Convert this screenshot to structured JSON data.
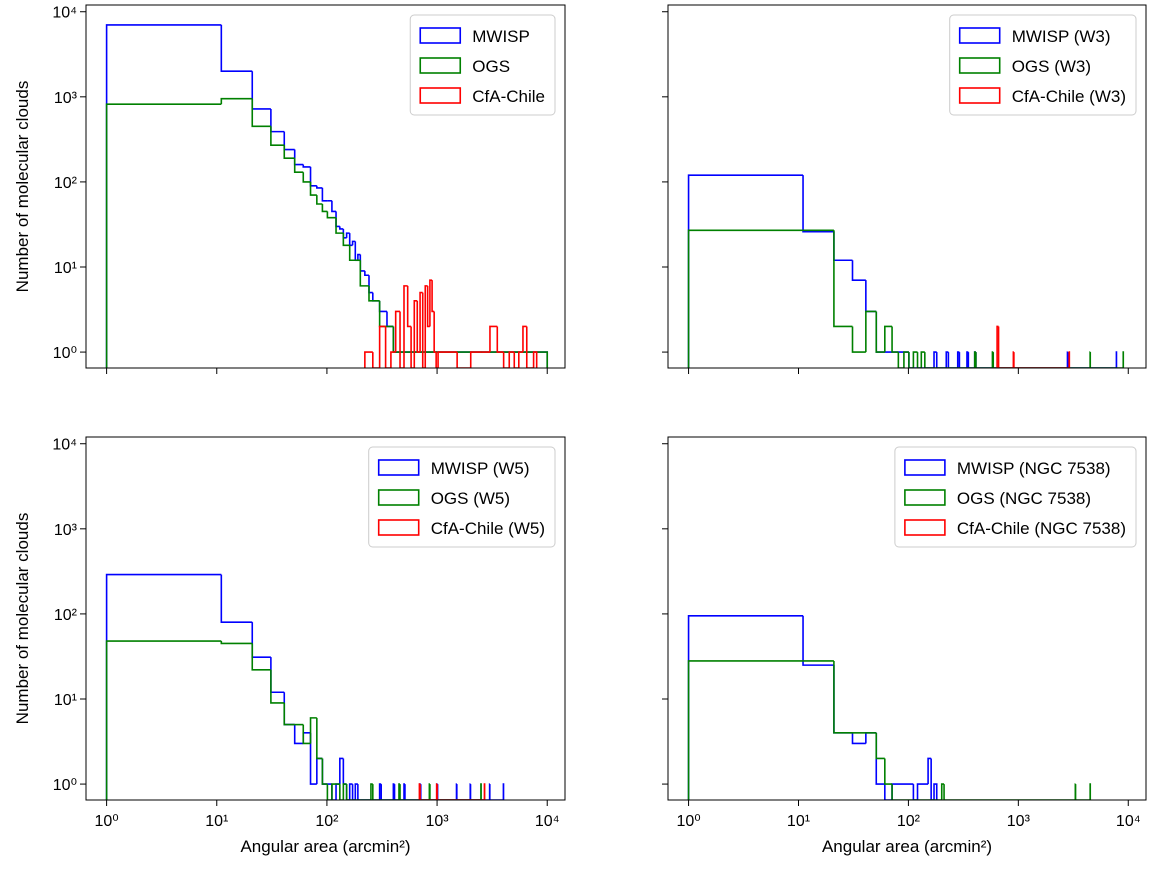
{
  "chart_data": [
    {
      "type": "histogram",
      "ylabel": "Number of molecular clouds",
      "xscale": "log",
      "yscale": "log",
      "legend": "upper right",
      "xlim": [
        0.65,
        14500
      ],
      "ylim": [
        0.65,
        12000
      ],
      "yticks": [
        {
          "value": 1,
          "label": "10⁰"
        },
        {
          "value": 10,
          "label": "10¹"
        },
        {
          "value": 100,
          "label": "10²"
        },
        {
          "value": 1000,
          "label": "10³"
        },
        {
          "value": 10000,
          "label": "10⁴"
        }
      ],
      "series": [
        {
          "name": "MWISP",
          "color": "#0000ff",
          "bins": [
            1,
            11,
            21,
            31,
            41,
            51,
            61,
            71,
            81,
            91,
            101,
            111,
            121,
            131,
            141,
            151,
            161,
            171,
            181,
            191,
            201,
            221,
            241,
            261,
            301,
            351,
            401,
            501,
            701,
            1001,
            2001,
            5001,
            10001
          ],
          "values": [
            7000,
            2000,
            720,
            390,
            240,
            160,
            150,
            90,
            85,
            60,
            60,
            45,
            30,
            28,
            22,
            25,
            18,
            20,
            12,
            14,
            9,
            8,
            5,
            4,
            3,
            2,
            1,
            1,
            1,
            1,
            1,
            1
          ]
        },
        {
          "name": "OGS",
          "color": "#008000",
          "bins": [
            1,
            11,
            21,
            31,
            41,
            51,
            61,
            71,
            81,
            91,
            101,
            121,
            141,
            161,
            181,
            201,
            241,
            301,
            401,
            601,
            1001,
            3001,
            10001
          ],
          "values": [
            820,
            950,
            450,
            270,
            190,
            130,
            100,
            70,
            55,
            45,
            38,
            25,
            18,
            12,
            12,
            6,
            4,
            2,
            1,
            1,
            1,
            1
          ]
        },
        {
          "name": "CfA-Chile",
          "color": "#ff0000",
          "bins": [
            221,
            261,
            301,
            341,
            381,
            421,
            461,
            501,
            541,
            581,
            621,
            661,
            701,
            741,
            781,
            821,
            861,
            901,
            941,
            981,
            1021,
            1521,
            2021,
            2521,
            3021,
            3521,
            4021,
            4521,
            5021,
            5521,
            6021,
            6521,
            7021,
            7521,
            8021
          ],
          "values": [
            1,
            0,
            2,
            0,
            1,
            3,
            0,
            6,
            2,
            0,
            4,
            1,
            5,
            0,
            6,
            2,
            7,
            3,
            1,
            0,
            1,
            0,
            1,
            1,
            2,
            1,
            0,
            1,
            0,
            1,
            2,
            0,
            0,
            1
          ]
        }
      ]
    },
    {
      "type": "histogram",
      "xscale": "log",
      "yscale": "log",
      "legend": "upper right",
      "xlim": [
        0.65,
        14500
      ],
      "ylim": [
        0.65,
        12000
      ],
      "series": [
        {
          "name": "MWISP (W3)",
          "color": "#0000ff",
          "bins": [
            1,
            11,
            21,
            31,
            41,
            51,
            101,
            171,
            181,
            221,
            231,
            281,
            291,
            341,
            351,
            401,
            411,
            2801,
            2811,
            7801,
            7811
          ],
          "values": [
            120,
            26,
            12,
            7,
            3,
            1,
            0,
            1,
            0,
            1,
            0,
            1,
            0,
            1,
            0,
            1,
            0,
            1,
            0,
            1
          ]
        },
        {
          "name": "OGS (W3)",
          "color": "#008000",
          "bins": [
            1,
            11,
            21,
            31,
            41,
            51,
            61,
            71,
            81,
            91,
            101,
            111,
            121,
            131,
            141,
            401,
            411,
            581,
            591,
            4501,
            4511,
            9001,
            9011
          ],
          "values": [
            27,
            27,
            2,
            1,
            3,
            1,
            2,
            1,
            0,
            1,
            0,
            1,
            0,
            1,
            0,
            1,
            0,
            1,
            0,
            1,
            0,
            1
          ]
        },
        {
          "name": "CfA-Chile (W3)",
          "color": "#ff0000",
          "bins": [
            641,
            661,
            901,
            911,
            2901,
            2911
          ],
          "values": [
            2,
            0,
            1,
            0,
            1
          ]
        }
      ]
    },
    {
      "type": "histogram",
      "ylabel": "Number of molecular clouds",
      "xlabel": "Angular area (arcmin²)",
      "xscale": "log",
      "yscale": "log",
      "legend": "upper right",
      "xlim": [
        0.65,
        14500
      ],
      "ylim": [
        0.65,
        12000
      ],
      "xticks": [
        {
          "value": 1,
          "label": "10⁰"
        },
        {
          "value": 10,
          "label": "10¹"
        },
        {
          "value": 100,
          "label": "10²"
        },
        {
          "value": 1000,
          "label": "10³"
        },
        {
          "value": 10000,
          "label": "10⁴"
        }
      ],
      "yticks": [
        {
          "value": 1,
          "label": "10⁰"
        },
        {
          "value": 10,
          "label": "10¹"
        },
        {
          "value": 100,
          "label": "10²"
        },
        {
          "value": 1000,
          "label": "10³"
        },
        {
          "value": 10000,
          "label": "10⁴"
        }
      ],
      "series": [
        {
          "name": "MWISP (W5)",
          "color": "#0000ff",
          "bins": [
            1,
            11,
            21,
            31,
            41,
            51,
            61,
            71,
            81,
            91,
            101,
            111,
            121,
            131,
            141,
            151,
            161,
            171,
            181,
            191,
            201,
            301,
            311,
            401,
            411,
            501,
            511,
            701,
            711,
            1001,
            1011,
            1501,
            1511,
            2001,
            2011,
            3001,
            3011,
            4001,
            4011
          ],
          "values": [
            290,
            80,
            31,
            12,
            5,
            3,
            4,
            1,
            2,
            1,
            1,
            0,
            1,
            2,
            1,
            0,
            1,
            0,
            1,
            0,
            0,
            1,
            0,
            1,
            0,
            1,
            0,
            1,
            0,
            1,
            0,
            1,
            0,
            1,
            0,
            1,
            0,
            1
          ]
        },
        {
          "name": "OGS (W5)",
          "color": "#008000",
          "bins": [
            1,
            11,
            21,
            31,
            41,
            51,
            61,
            71,
            81,
            91,
            101,
            111,
            121,
            131,
            141,
            151,
            161,
            251,
            261,
            451,
            461,
            851,
            861,
            2501,
            2511
          ],
          "values": [
            48,
            45,
            22,
            9,
            5,
            5,
            3,
            6,
            2,
            1,
            0,
            1,
            1,
            0,
            1,
            0,
            0,
            1,
            0,
            1,
            0,
            1,
            0,
            1
          ]
        },
        {
          "name": "CfA-Chile (W5)",
          "color": "#ff0000",
          "bins": [
            691,
            701,
            991,
            1001,
            2691,
            2701
          ],
          "values": [
            1,
            0,
            1,
            0,
            1
          ]
        }
      ]
    },
    {
      "type": "histogram",
      "xlabel": "Angular area (arcmin²)",
      "xscale": "log",
      "yscale": "log",
      "legend": "upper right",
      "xlim": [
        0.65,
        14500
      ],
      "ylim": [
        0.65,
        12000
      ],
      "xticks": [
        {
          "value": 1,
          "label": "10⁰"
        },
        {
          "value": 10,
          "label": "10¹"
        },
        {
          "value": 100,
          "label": "10²"
        },
        {
          "value": 1000,
          "label": "10³"
        },
        {
          "value": 10000,
          "label": "10⁴"
        }
      ],
      "series": [
        {
          "name": "MWISP (NGC 7538)",
          "color": "#0000ff",
          "bins": [
            1,
            11,
            21,
            31,
            41,
            51,
            61,
            71,
            111,
            121,
            151,
            161,
            171,
            181
          ],
          "values": [
            95,
            25,
            4,
            3,
            4,
            1,
            0,
            1,
            0,
            1,
            2,
            0,
            1
          ]
        },
        {
          "name": "OGS (NGC 7538)",
          "color": "#008000",
          "bins": [
            1,
            11,
            21,
            31,
            41,
            51,
            61,
            71,
            201,
            211,
            3301,
            3311,
            4501,
            4511
          ],
          "values": [
            28,
            28,
            4,
            4,
            4,
            2,
            1,
            0,
            1,
            0,
            1,
            0,
            1
          ]
        },
        {
          "name": "CfA-Chile (NGC 7538)",
          "color": "#ff0000",
          "bins": [],
          "values": []
        }
      ]
    }
  ]
}
